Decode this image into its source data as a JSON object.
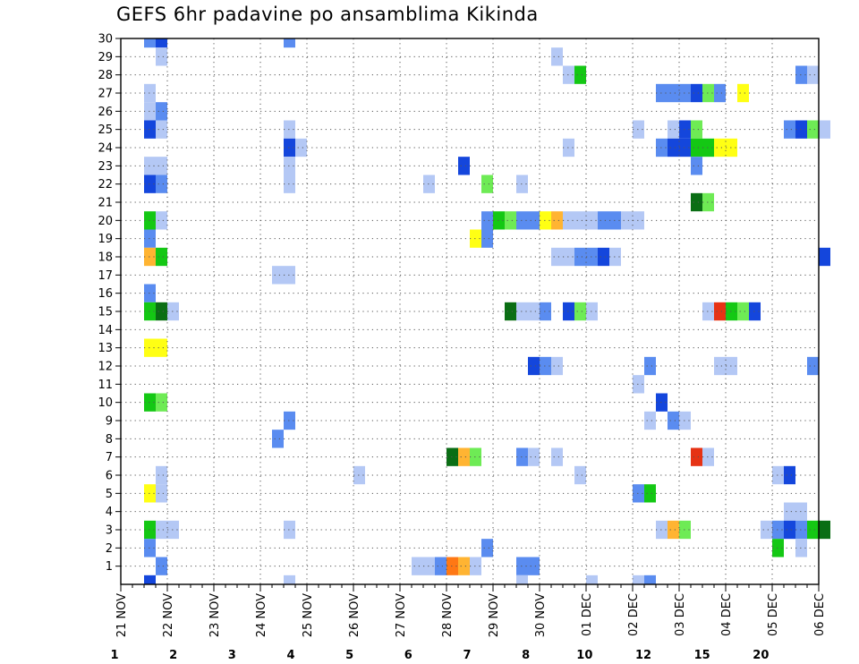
{
  "chart_data": {
    "type": "heatmap",
    "title": "GEFS 6hr padavine po ansamblima Kikinda",
    "y_tick_labels": [
      "1",
      "2",
      "3",
      "4",
      "5",
      "6",
      "7",
      "8",
      "9",
      "10",
      "11",
      "12",
      "13",
      "14",
      "15",
      "16",
      "17",
      "18",
      "19",
      "20",
      "21",
      "22",
      "23",
      "24",
      "25",
      "26",
      "27",
      "28",
      "29",
      "30"
    ],
    "x_tick_labels": [
      "21 NOV",
      "22 NOV",
      "23 NOV",
      "24 NOV",
      "25 NOV",
      "26 NOV",
      "27 NOV",
      "28 NOV",
      "29 NOV",
      "30 NOV",
      "01 DEC",
      "02 DEC",
      "03 DEC",
      "04 DEC",
      "05 DEC",
      "06 DEC"
    ],
    "colorbar": {
      "labels": [
        "1",
        "2",
        "3",
        "4",
        "5",
        "6",
        "7",
        "8",
        "10",
        "12",
        "15",
        "20"
      ],
      "colors": [
        "#b4c8f5",
        "#5a8cf0",
        "#1446dc",
        "#6eeb55",
        "#14c814",
        "#0a6e14",
        "#ffff14",
        "#ffb432",
        "#ff7814",
        "#e63214",
        "#b40a0a",
        "#78000a"
      ]
    },
    "grid": "dotted",
    "cells": [
      {
        "member": 30,
        "step": 2,
        "level": 1
      },
      {
        "member": 30,
        "step": 3,
        "level": 2
      },
      {
        "member": 30,
        "step": 14,
        "level": 1
      },
      {
        "member": 29,
        "step": 3,
        "level": 0
      },
      {
        "member": 29,
        "step": 37,
        "level": 0
      },
      {
        "member": 28,
        "step": 38,
        "level": 0
      },
      {
        "member": 28,
        "step": 39,
        "level": 4
      },
      {
        "member": 28,
        "step": 58,
        "level": 1
      },
      {
        "member": 28,
        "step": 59,
        "level": 0
      },
      {
        "member": 27,
        "step": 2,
        "level": 0
      },
      {
        "member": 27,
        "step": 46,
        "level": 1
      },
      {
        "member": 27,
        "step": 47,
        "level": 1
      },
      {
        "member": 27,
        "step": 48,
        "level": 1
      },
      {
        "member": 27,
        "step": 49,
        "level": 2
      },
      {
        "member": 27,
        "step": 50,
        "level": 3
      },
      {
        "member": 27,
        "step": 51,
        "level": 1
      },
      {
        "member": 27,
        "step": 53,
        "level": 6
      },
      {
        "member": 26,
        "step": 2,
        "level": 0
      },
      {
        "member": 26,
        "step": 3,
        "level": 1
      },
      {
        "member": 25,
        "step": 2,
        "level": 2
      },
      {
        "member": 25,
        "step": 3,
        "level": 0
      },
      {
        "member": 25,
        "step": 14,
        "level": 0
      },
      {
        "member": 25,
        "step": 44,
        "level": 0
      },
      {
        "member": 25,
        "step": 47,
        "level": 0
      },
      {
        "member": 25,
        "step": 48,
        "level": 2
      },
      {
        "member": 25,
        "step": 49,
        "level": 3
      },
      {
        "member": 25,
        "step": 57,
        "level": 1
      },
      {
        "member": 25,
        "step": 58,
        "level": 2
      },
      {
        "member": 25,
        "step": 59,
        "level": 3
      },
      {
        "member": 25,
        "step": 60,
        "level": 0
      },
      {
        "member": 24,
        "step": 14,
        "level": 2
      },
      {
        "member": 24,
        "step": 15,
        "level": 0
      },
      {
        "member": 24,
        "step": 38,
        "level": 0
      },
      {
        "member": 24,
        "step": 46,
        "level": 1
      },
      {
        "member": 24,
        "step": 47,
        "level": 2
      },
      {
        "member": 24,
        "step": 48,
        "level": 2
      },
      {
        "member": 24,
        "step": 49,
        "level": 4
      },
      {
        "member": 24,
        "step": 50,
        "level": 4
      },
      {
        "member": 24,
        "step": 51,
        "level": 6
      },
      {
        "member": 24,
        "step": 52,
        "level": 6
      },
      {
        "member": 23,
        "step": 2,
        "level": 0
      },
      {
        "member": 23,
        "step": 3,
        "level": 0
      },
      {
        "member": 23,
        "step": 14,
        "level": 0
      },
      {
        "member": 23,
        "step": 29,
        "level": 2
      },
      {
        "member": 23,
        "step": 49,
        "level": 1
      },
      {
        "member": 22,
        "step": 2,
        "level": 2
      },
      {
        "member": 22,
        "step": 3,
        "level": 1
      },
      {
        "member": 22,
        "step": 14,
        "level": 0
      },
      {
        "member": 22,
        "step": 26,
        "level": 0
      },
      {
        "member": 22,
        "step": 31,
        "level": 3
      },
      {
        "member": 22,
        "step": 34,
        "level": 0
      },
      {
        "member": 21,
        "step": 49,
        "level": 5
      },
      {
        "member": 21,
        "step": 50,
        "level": 3
      },
      {
        "member": 20,
        "step": 2,
        "level": 4
      },
      {
        "member": 20,
        "step": 3,
        "level": 0
      },
      {
        "member": 20,
        "step": 31,
        "level": 1
      },
      {
        "member": 20,
        "step": 32,
        "level": 4
      },
      {
        "member": 20,
        "step": 33,
        "level": 3
      },
      {
        "member": 20,
        "step": 34,
        "level": 1
      },
      {
        "member": 20,
        "step": 35,
        "level": 1
      },
      {
        "member": 20,
        "step": 36,
        "level": 6
      },
      {
        "member": 20,
        "step": 37,
        "level": 7
      },
      {
        "member": 20,
        "step": 38,
        "level": 0
      },
      {
        "member": 20,
        "step": 39,
        "level": 0
      },
      {
        "member": 20,
        "step": 40,
        "level": 0
      },
      {
        "member": 20,
        "step": 41,
        "level": 1
      },
      {
        "member": 20,
        "step": 42,
        "level": 1
      },
      {
        "member": 20,
        "step": 43,
        "level": 0
      },
      {
        "member": 20,
        "step": 44,
        "level": 0
      },
      {
        "member": 19,
        "step": 2,
        "level": 1
      },
      {
        "member": 19,
        "step": 30,
        "level": 6
      },
      {
        "member": 19,
        "step": 31,
        "level": 1
      },
      {
        "member": 18,
        "step": 2,
        "level": 7
      },
      {
        "member": 18,
        "step": 3,
        "level": 4
      },
      {
        "member": 18,
        "step": 37,
        "level": 0
      },
      {
        "member": 18,
        "step": 38,
        "level": 0
      },
      {
        "member": 18,
        "step": 39,
        "level": 1
      },
      {
        "member": 18,
        "step": 40,
        "level": 1
      },
      {
        "member": 18,
        "step": 41,
        "level": 2
      },
      {
        "member": 18,
        "step": 42,
        "level": 0
      },
      {
        "member": 18,
        "step": 60,
        "level": 2
      },
      {
        "member": 17,
        "step": 13,
        "level": 0
      },
      {
        "member": 17,
        "step": 14,
        "level": 0
      },
      {
        "member": 16,
        "step": 2,
        "level": 1
      },
      {
        "member": 15,
        "step": 2,
        "level": 4
      },
      {
        "member": 15,
        "step": 3,
        "level": 5
      },
      {
        "member": 15,
        "step": 4,
        "level": 0
      },
      {
        "member": 15,
        "step": 33,
        "level": 5
      },
      {
        "member": 15,
        "step": 34,
        "level": 0
      },
      {
        "member": 15,
        "step": 35,
        "level": 0
      },
      {
        "member": 15,
        "step": 36,
        "level": 1
      },
      {
        "member": 15,
        "step": 38,
        "level": 2
      },
      {
        "member": 15,
        "step": 39,
        "level": 3
      },
      {
        "member": 15,
        "step": 40,
        "level": 0
      },
      {
        "member": 15,
        "step": 50,
        "level": 0
      },
      {
        "member": 15,
        "step": 51,
        "level": 9
      },
      {
        "member": 15,
        "step": 52,
        "level": 4
      },
      {
        "member": 15,
        "step": 53,
        "level": 3
      },
      {
        "member": 15,
        "step": 54,
        "level": 2
      },
      {
        "member": 13,
        "step": 2,
        "level": 6
      },
      {
        "member": 13,
        "step": 3,
        "level": 6
      },
      {
        "member": 12,
        "step": 35,
        "level": 2
      },
      {
        "member": 12,
        "step": 36,
        "level": 1
      },
      {
        "member": 12,
        "step": 37,
        "level": 0
      },
      {
        "member": 12,
        "step": 45,
        "level": 1
      },
      {
        "member": 12,
        "step": 51,
        "level": 0
      },
      {
        "member": 12,
        "step": 52,
        "level": 0
      },
      {
        "member": 12,
        "step": 59,
        "level": 1
      },
      {
        "member": 11,
        "step": 44,
        "level": 0
      },
      {
        "member": 10,
        "step": 2,
        "level": 4
      },
      {
        "member": 10,
        "step": 3,
        "level": 3
      },
      {
        "member": 10,
        "step": 46,
        "level": 2
      },
      {
        "member": 9,
        "step": 14,
        "level": 1
      },
      {
        "member": 9,
        "step": 45,
        "level": 0
      },
      {
        "member": 9,
        "step": 47,
        "level": 1
      },
      {
        "member": 9,
        "step": 48,
        "level": 0
      },
      {
        "member": 8,
        "step": 13,
        "level": 1
      },
      {
        "member": 7,
        "step": 28,
        "level": 5
      },
      {
        "member": 7,
        "step": 29,
        "level": 7
      },
      {
        "member": 7,
        "step": 30,
        "level": 3
      },
      {
        "member": 7,
        "step": 34,
        "level": 1
      },
      {
        "member": 7,
        "step": 35,
        "level": 0
      },
      {
        "member": 7,
        "step": 37,
        "level": 0
      },
      {
        "member": 7,
        "step": 49,
        "level": 9
      },
      {
        "member": 7,
        "step": 50,
        "level": 0
      },
      {
        "member": 6,
        "step": 3,
        "level": 0
      },
      {
        "member": 6,
        "step": 20,
        "level": 0
      },
      {
        "member": 6,
        "step": 39,
        "level": 0
      },
      {
        "member": 6,
        "step": 56,
        "level": 0
      },
      {
        "member": 6,
        "step": 57,
        "level": 2
      },
      {
        "member": 5,
        "step": 2,
        "level": 6
      },
      {
        "member": 5,
        "step": 3,
        "level": 0
      },
      {
        "member": 5,
        "step": 44,
        "level": 1
      },
      {
        "member": 5,
        "step": 45,
        "level": 4
      },
      {
        "member": 4,
        "step": 57,
        "level": 0
      },
      {
        "member": 4,
        "step": 58,
        "level": 0
      },
      {
        "member": 3,
        "step": 2,
        "level": 4
      },
      {
        "member": 3,
        "step": 3,
        "level": 0
      },
      {
        "member": 3,
        "step": 4,
        "level": 0
      },
      {
        "member": 3,
        "step": 14,
        "level": 0
      },
      {
        "member": 3,
        "step": 46,
        "level": 0
      },
      {
        "member": 3,
        "step": 47,
        "level": 7
      },
      {
        "member": 3,
        "step": 48,
        "level": 3
      },
      {
        "member": 3,
        "step": 55,
        "level": 0
      },
      {
        "member": 3,
        "step": 56,
        "level": 1
      },
      {
        "member": 3,
        "step": 57,
        "level": 2
      },
      {
        "member": 3,
        "step": 58,
        "level": 1
      },
      {
        "member": 3,
        "step": 59,
        "level": 4
      },
      {
        "member": 3,
        "step": 60,
        "level": 5
      },
      {
        "member": 2,
        "step": 2,
        "level": 1
      },
      {
        "member": 2,
        "step": 31,
        "level": 1
      },
      {
        "member": 2,
        "step": 56,
        "level": 4
      },
      {
        "member": 2,
        "step": 58,
        "level": 0
      },
      {
        "member": 1,
        "step": 3,
        "level": 1
      },
      {
        "member": 1,
        "step": 25,
        "level": 0
      },
      {
        "member": 1,
        "step": 26,
        "level": 0
      },
      {
        "member": 1,
        "step": 27,
        "level": 1
      },
      {
        "member": 1,
        "step": 28,
        "level": 8
      },
      {
        "member": 1,
        "step": 29,
        "level": 7
      },
      {
        "member": 1,
        "step": 30,
        "level": 0
      },
      {
        "member": 1,
        "step": 34,
        "level": 1
      },
      {
        "member": 1,
        "step": 35,
        "level": 1
      },
      {
        "member": 0,
        "step": 2,
        "level": 2
      },
      {
        "member": 0,
        "step": 14,
        "level": 0
      },
      {
        "member": 0,
        "step": 34,
        "level": 0
      },
      {
        "member": 0,
        "step": 40,
        "level": 0
      },
      {
        "member": 0,
        "step": 44,
        "level": 0
      },
      {
        "member": 0,
        "step": 45,
        "level": 1
      }
    ]
  }
}
